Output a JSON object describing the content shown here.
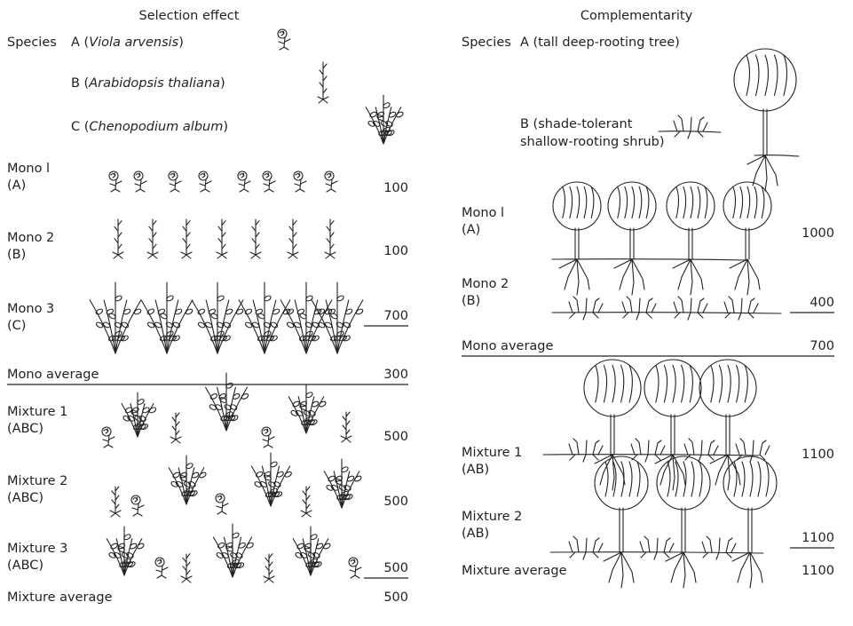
{
  "left": {
    "title": "Selection effect",
    "species_label": "Species",
    "species": [
      {
        "prefix": "A (",
        "name": "Viola arvensis",
        "suffix": ")"
      },
      {
        "prefix": "B (",
        "name": "Arabidopsis thaliana",
        "suffix": ")"
      },
      {
        "prefix": "C (",
        "name": "Chenopodium album",
        "suffix": ")"
      }
    ],
    "rows": [
      {
        "label": [
          "Mono l",
          "(A)"
        ],
        "value": 100,
        "underline": false
      },
      {
        "label": [
          "Mono 2",
          "(B)"
        ],
        "value": 100,
        "underline": false
      },
      {
        "label": [
          "Mono 3",
          "(C)"
        ],
        "value": 700,
        "underline": true
      }
    ],
    "mono_average": {
      "label": "Mono average",
      "value": 300
    },
    "mixtures": [
      {
        "label": [
          "Mixture 1",
          "(ABC)"
        ],
        "value": 500,
        "underline": false
      },
      {
        "label": [
          "Mixture 2",
          "(ABC)"
        ],
        "value": 500,
        "underline": false
      },
      {
        "label": [
          "Mixture 3",
          "(ABC)"
        ],
        "value": 500,
        "underline": true
      }
    ],
    "mixture_average": {
      "label": "Mixture average",
      "value": 500
    }
  },
  "right": {
    "title": "Complementarity",
    "species_label": "Species",
    "species": [
      {
        "lines": [
          "A (tall deep-rooting tree)"
        ]
      },
      {
        "lines": [
          "B (shade-tolerant",
          "shallow-rooting shrub)"
        ]
      }
    ],
    "rows": [
      {
        "label": [
          "Mono l",
          "(A)"
        ],
        "value": 1000,
        "underline": false
      },
      {
        "label": [
          "Mono 2",
          "(B)"
        ],
        "value": 400,
        "underline": true
      }
    ],
    "mono_average": {
      "label": "Mono average",
      "value": 700
    },
    "mixtures": [
      {
        "label": [
          "Mixture 1",
          "(AB)"
        ],
        "value": 1100,
        "underline": false
      },
      {
        "label": [
          "Mixture 2",
          "(AB)"
        ],
        "value": 1100,
        "underline": true
      }
    ],
    "mixture_average": {
      "label": "Mixture average",
      "value": 1100
    }
  }
}
